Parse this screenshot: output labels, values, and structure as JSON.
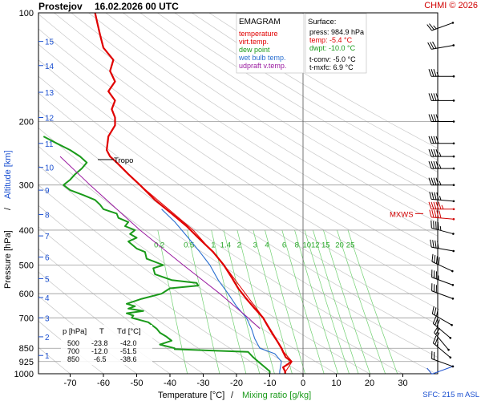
{
  "header": {
    "station": "Prostejov",
    "datetime": "16.02.2026 00 UTC",
    "copyright": "CHMI © 2026"
  },
  "legend": {
    "title": "EMAGRAM",
    "items": [
      {
        "label": "temperature",
        "color": "#e00000"
      },
      {
        "label": "virt.temp.",
        "color": "#e00000"
      },
      {
        "label": "dew point",
        "color": "#1a9a1a"
      },
      {
        "label": "wet bulb temp.",
        "color": "#2a6fd0"
      },
      {
        "label": "udpraft v.temp.",
        "color": "#9a1aa0"
      }
    ]
  },
  "surface": {
    "title": "Surface:",
    "press": "press: 984.9 hPa",
    "temp": "temp: -5.4 °C",
    "dwpt": "dwpt: -10.0 °C",
    "tconv": "t-conv: -5.0 °C",
    "tmxfc": "t-mxfc: 6.9 °C"
  },
  "table": {
    "header": [
      "p [hPa]",
      "T",
      "Td [°C]"
    ],
    "rows": [
      [
        "500",
        "-23.8",
        "-42.0"
      ],
      [
        "700",
        "-12.0",
        "-51.5"
      ],
      [
        "850",
        "-6.5",
        "-38.6"
      ]
    ]
  },
  "annotations": {
    "tropo": "Tropo",
    "mxws": "MXWS",
    "sfc": "SFC: 215 m ASL"
  },
  "axes": {
    "ylabel_pressure": "Pressure [hPa]",
    "ylabel_sep": "/",
    "ylabel_altitude": "Altitude [km]",
    "xlabel_temp": "Temperature [°C]",
    "xlabel_sep": "/",
    "xlabel_mix": "Mixing ratio [g/kg]"
  },
  "chart_data": {
    "type": "line",
    "title": "Prostejov 16.02.2026 00 UTC",
    "xlabel": "Temperature [°C]",
    "ylabel": "Pressure [hPa]",
    "xlim": [
      -80,
      40
    ],
    "ylim": [
      1000,
      100
    ],
    "y_scale": "log",
    "pressure_ticks": [
      100,
      200,
      300,
      400,
      500,
      600,
      700,
      850,
      925,
      1000
    ],
    "temp_ticks": [
      -70,
      -60,
      -50,
      -40,
      -30,
      -20,
      -10,
      0,
      10,
      20,
      30
    ],
    "altitude_ticks": [
      {
        "km": "1",
        "p": 890
      },
      {
        "km": "2",
        "p": 790
      },
      {
        "km": "3",
        "p": 700
      },
      {
        "km": "4",
        "p": 615
      },
      {
        "km": "5",
        "p": 545
      },
      {
        "km": "6",
        "p": 475
      },
      {
        "km": "7",
        "p": 415
      },
      {
        "km": "8",
        "p": 362
      },
      {
        "km": "9",
        "p": 310
      },
      {
        "km": "10",
        "p": 268
      },
      {
        "km": "11",
        "p": 230
      },
      {
        "km": "12",
        "p": 195
      },
      {
        "km": "13",
        "p": 166
      },
      {
        "km": "14",
        "p": 140
      },
      {
        "km": "15",
        "p": 120
      }
    ],
    "mixing_ratio_labels": [
      "0.2",
      "0.5",
      "1",
      "1.4",
      "2",
      "3",
      "4",
      "6",
      "8",
      "10",
      "12",
      "15",
      "20",
      "25"
    ],
    "mixing_ratio_values": [
      0.2,
      0.5,
      1,
      1.4,
      2,
      3,
      4,
      6,
      8,
      10,
      12,
      15,
      20,
      25
    ],
    "mixing_ratio_label_pressure": 420,
    "series": [
      {
        "name": "temperature",
        "color": "#e00000",
        "points": [
          [
            1000,
            -5.4
          ],
          [
            985,
            -5.4
          ],
          [
            960,
            -6.0
          ],
          [
            940,
            -4.5
          ],
          [
            925,
            -3.5
          ],
          [
            900,
            -5.2
          ],
          [
            870,
            -6.0
          ],
          [
            850,
            -6.5
          ],
          [
            820,
            -7.5
          ],
          [
            780,
            -9.0
          ],
          [
            740,
            -10.5
          ],
          [
            700,
            -12.0
          ],
          [
            660,
            -14.5
          ],
          [
            620,
            -17.0
          ],
          [
            580,
            -19.5
          ],
          [
            540,
            -21.5
          ],
          [
            500,
            -23.8
          ],
          [
            460,
            -27.0
          ],
          [
            420,
            -31.5
          ],
          [
            390,
            -35.0
          ],
          [
            360,
            -39.5
          ],
          [
            330,
            -44.5
          ],
          [
            300,
            -49.0
          ],
          [
            280,
            -52.5
          ],
          [
            260,
            -56.0
          ],
          [
            250,
            -58.0
          ],
          [
            240,
            -59.0
          ],
          [
            220,
            -58.5
          ],
          [
            205,
            -56.5
          ],
          [
            195,
            -56.5
          ],
          [
            185,
            -57.5
          ],
          [
            175,
            -56.5
          ],
          [
            165,
            -58.5
          ],
          [
            155,
            -56.5
          ],
          [
            145,
            -58.0
          ],
          [
            135,
            -57.0
          ],
          [
            125,
            -60.0
          ],
          [
            115,
            -61.0
          ],
          [
            105,
            -62.0
          ],
          [
            100,
            -62.5
          ]
        ]
      },
      {
        "name": "virt.temp.",
        "color": "#e00000",
        "points": [
          [
            1000,
            -5.2
          ],
          [
            985,
            -5.2
          ],
          [
            925,
            -3.3
          ],
          [
            870,
            -5.8
          ],
          [
            850,
            -6.3
          ],
          [
            700,
            -11.9
          ],
          [
            500,
            -23.7
          ],
          [
            400,
            -33.0
          ],
          [
            300,
            -49.0
          ],
          [
            250,
            -58.0
          ]
        ]
      },
      {
        "name": "dew point",
        "color": "#1a9a1a",
        "points": [
          [
            1000,
            -10.0
          ],
          [
            985,
            -10.0
          ],
          [
            950,
            -12.0
          ],
          [
            925,
            -13.5
          ],
          [
            900,
            -15.0
          ],
          [
            870,
            -16.5
          ],
          [
            855,
            -38.6
          ],
          [
            850,
            -38.6
          ],
          [
            830,
            -43.0
          ],
          [
            810,
            -39.5
          ],
          [
            790,
            -41.0
          ],
          [
            770,
            -43.0
          ],
          [
            750,
            -44.0
          ],
          [
            720,
            -46.5
          ],
          [
            700,
            -51.5
          ],
          [
            690,
            -51.0
          ],
          [
            680,
            -53.0
          ],
          [
            670,
            -48.0
          ],
          [
            660,
            -52.5
          ],
          [
            650,
            -50.5
          ],
          [
            640,
            -53.0
          ],
          [
            620,
            -48.5
          ],
          [
            600,
            -42.5
          ],
          [
            580,
            -40.0
          ],
          [
            570,
            -31.5
          ],
          [
            560,
            -32.0
          ],
          [
            550,
            -39.5
          ],
          [
            530,
            -44.5
          ],
          [
            510,
            -45.0
          ],
          [
            500,
            -42.0
          ],
          [
            480,
            -47.0
          ],
          [
            460,
            -47.5
          ],
          [
            450,
            -50.0
          ],
          [
            430,
            -52.5
          ],
          [
            420,
            -50.0
          ],
          [
            410,
            -52.0
          ],
          [
            400,
            -50.5
          ],
          [
            390,
            -53.5
          ],
          [
            380,
            -52.5
          ],
          [
            370,
            -55.5
          ],
          [
            360,
            -56.0
          ],
          [
            350,
            -60.0
          ],
          [
            340,
            -61.0
          ],
          [
            330,
            -62.5
          ],
          [
            320,
            -66.0
          ],
          [
            310,
            -70.0
          ],
          [
            300,
            -72.0
          ],
          [
            290,
            -70.0
          ],
          [
            280,
            -68.5
          ],
          [
            270,
            -66.5
          ],
          [
            260,
            -65.0
          ],
          [
            250,
            -67.0
          ],
          [
            240,
            -70.0
          ],
          [
            230,
            -74.0
          ],
          [
            220,
            -78.0
          ]
        ]
      },
      {
        "name": "wet bulb temp.",
        "color": "#2a6fd0",
        "points": [
          [
            1000,
            -7.0
          ],
          [
            985,
            -7.0
          ],
          [
            925,
            -6.5
          ],
          [
            880,
            -8.5
          ],
          [
            850,
            -13.0
          ],
          [
            800,
            -14.5
          ],
          [
            750,
            -15.5
          ],
          [
            700,
            -17.0
          ],
          [
            650,
            -20.0
          ],
          [
            600,
            -22.5
          ],
          [
            550,
            -25.5
          ],
          [
            500,
            -28.0
          ],
          [
            460,
            -31.0
          ],
          [
            420,
            -34.5
          ],
          [
            380,
            -38.5
          ],
          [
            350,
            -42.5
          ]
        ]
      },
      {
        "name": "udpraft v.temp.",
        "color": "#9a1aa0",
        "points": [
          [
            750,
            -13.0
          ],
          [
            700,
            -16.5
          ],
          [
            600,
            -25.0
          ],
          [
            500,
            -36.0
          ],
          [
            400,
            -49.0
          ],
          [
            300,
            -64.0
          ],
          [
            250,
            -73.0
          ]
        ]
      }
    ],
    "wind_barbs": [
      {
        "p": 985,
        "dir": 250,
        "kt": 10
      },
      {
        "p": 925,
        "dir": 290,
        "kt": 20
      },
      {
        "p": 850,
        "dir": 310,
        "kt": 25
      },
      {
        "p": 800,
        "dir": 320,
        "kt": 25
      },
      {
        "p": 750,
        "dir": 310,
        "kt": 30
      },
      {
        "p": 700,
        "dir": 300,
        "kt": 30
      },
      {
        "p": 600,
        "dir": 290,
        "kt": 30
      },
      {
        "p": 550,
        "dir": 290,
        "kt": 35
      },
      {
        "p": 500,
        "dir": 295,
        "kt": 40
      },
      {
        "p": 450,
        "dir": 280,
        "kt": 40
      },
      {
        "p": 400,
        "dir": 285,
        "kt": 45
      },
      {
        "p": 370,
        "dir": 275,
        "kt": 50
      },
      {
        "p": 350,
        "dir": 270,
        "kt": 55
      },
      {
        "p": 330,
        "dir": 275,
        "kt": 45
      },
      {
        "p": 300,
        "dir": 270,
        "kt": 45
      },
      {
        "p": 270,
        "dir": 270,
        "kt": 45
      },
      {
        "p": 250,
        "dir": 270,
        "kt": 45
      },
      {
        "p": 230,
        "dir": 270,
        "kt": 40
      },
      {
        "p": 200,
        "dir": 270,
        "kt": 40
      },
      {
        "p": 175,
        "dir": 270,
        "kt": 40
      },
      {
        "p": 150,
        "dir": 270,
        "kt": 35
      },
      {
        "p": 125,
        "dir": 260,
        "kt": 30
      },
      {
        "p": 110,
        "dir": 250,
        "kt": 25
      }
    ],
    "mxws_pressure": 360,
    "tropopause_pressure": 255,
    "sfc_pressure": 985
  }
}
